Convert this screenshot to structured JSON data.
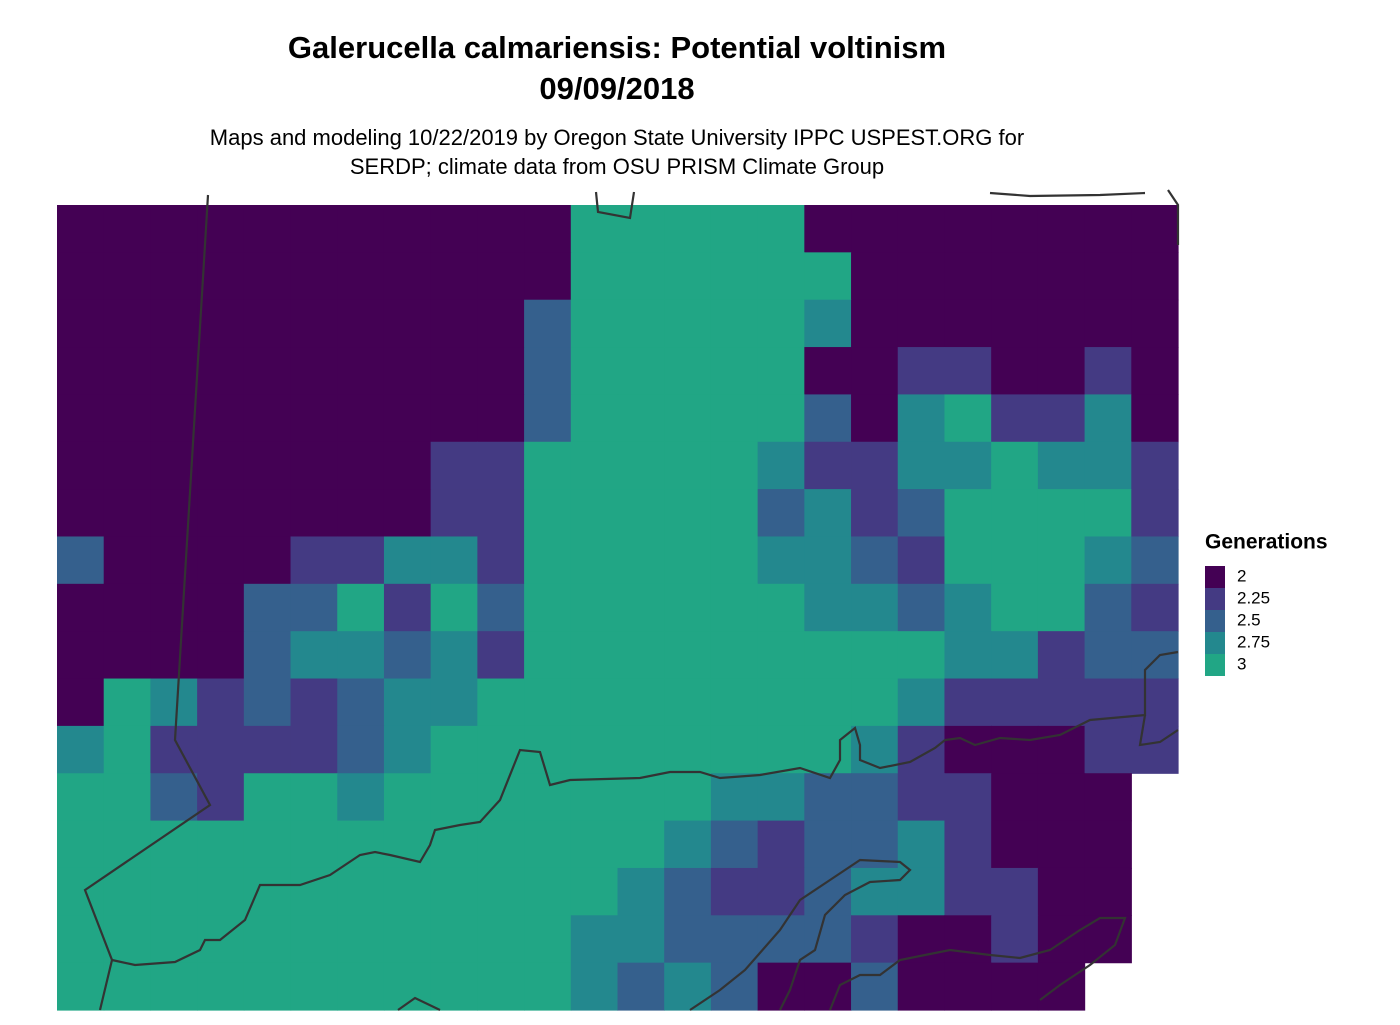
{
  "chart_data": {
    "type": "raster",
    "title": [
      "Galerucella calmariensis: Potential voltinism",
      "09/09/2018"
    ],
    "subtitle": [
      "Maps and modeling 10/22/2019 by Oregon State University IPPC USPEST.ORG for",
      "SERDP; climate data from OSU PRISM Climate Group"
    ],
    "legend": {
      "title": "Generations",
      "entries": [
        {
          "value": 2,
          "color": "#440154"
        },
        {
          "value": 2.25,
          "color": "#443a83"
        },
        {
          "value": 2.5,
          "color": "#35608d"
        },
        {
          "value": 2.75,
          "color": "#23888e"
        },
        {
          "value": 3,
          "color": "#21a685"
        }
      ]
    },
    "values": [
      [
        2,
        2,
        2,
        2,
        2,
        2,
        2,
        2,
        2,
        2,
        2,
        3,
        3,
        3,
        3,
        3,
        2,
        2,
        2,
        2,
        2,
        2,
        2,
        2
      ],
      [
        2,
        2,
        2,
        2,
        2,
        2,
        2,
        2,
        2,
        2,
        2,
        3,
        3,
        3,
        3,
        3,
        3,
        2,
        2,
        2,
        2,
        2,
        2,
        2
      ],
      [
        2,
        2,
        2,
        2,
        2,
        2,
        2,
        2,
        2,
        2,
        2.5,
        3,
        3,
        3,
        3,
        3,
        2.75,
        2,
        2,
        2,
        2,
        2,
        2,
        2
      ],
      [
        2,
        2,
        2,
        2,
        2,
        2,
        2,
        2,
        2,
        2,
        2.5,
        3,
        3,
        3,
        3,
        3,
        2,
        2,
        2.25,
        2.25,
        2,
        2,
        2.25,
        2
      ],
      [
        2,
        2,
        2,
        2,
        2,
        2,
        2,
        2,
        2,
        2,
        2.5,
        3,
        3,
        3,
        3,
        3,
        2.5,
        2,
        2.75,
        3,
        2.25,
        2.25,
        2.75,
        2
      ],
      [
        2,
        2,
        2,
        2,
        2,
        2,
        2,
        2,
        2.25,
        2.25,
        3,
        3,
        3,
        3,
        3,
        2.75,
        2.25,
        2.25,
        2.75,
        2.75,
        3,
        2.75,
        2.75,
        2.25
      ],
      [
        2,
        2,
        2,
        2,
        2,
        2,
        2,
        2,
        2.25,
        2.25,
        3,
        3,
        3,
        3,
        3,
        2.5,
        2.75,
        2.25,
        2.5,
        3,
        3,
        3,
        3,
        2.25
      ],
      [
        2.5,
        2,
        2,
        2,
        2,
        2.25,
        2.25,
        2.75,
        2.75,
        2.25,
        3,
        3,
        3,
        3,
        3,
        2.75,
        2.75,
        2.5,
        2.25,
        3,
        3,
        3,
        2.75,
        2.5
      ],
      [
        2,
        2,
        2,
        2,
        2.5,
        2.5,
        3,
        2.25,
        3,
        2.5,
        3,
        3,
        3,
        3,
        3,
        3,
        2.75,
        2.75,
        2.5,
        2.75,
        3,
        3,
        2.5,
        2.25
      ],
      [
        2,
        2,
        2,
        2,
        2.5,
        2.75,
        2.75,
        2.5,
        2.75,
        2.25,
        3,
        3,
        3,
        3,
        3,
        3,
        3,
        3,
        3,
        2.75,
        2.75,
        2.25,
        2.5,
        2.5
      ],
      [
        2,
        3,
        2.75,
        2.25,
        2.5,
        2.25,
        2.5,
        2.75,
        2.75,
        3,
        3,
        3,
        3,
        3,
        3,
        3,
        3,
        3,
        2.75,
        2.25,
        2.25,
        2.25,
        2.25,
        2.25
      ],
      [
        2.75,
        3,
        2.25,
        2.25,
        2.25,
        2.25,
        2.5,
        2.75,
        3,
        3,
        3,
        3,
        3,
        3,
        3,
        3,
        3,
        2.75,
        2.25,
        2,
        2,
        2,
        2.25,
        2.25
      ],
      [
        3,
        3,
        2.5,
        2.25,
        3,
        3,
        2.75,
        3,
        3,
        3,
        3,
        3,
        3,
        3,
        2.75,
        2.75,
        2.5,
        2.5,
        2.25,
        2.25,
        2,
        2,
        2,
        null
      ],
      [
        3,
        3,
        3,
        3,
        3,
        3,
        3,
        3,
        3,
        3,
        3,
        3,
        3,
        2.75,
        2.5,
        2.25,
        2.5,
        2.5,
        2.75,
        2.25,
        2,
        2,
        2,
        null
      ],
      [
        3,
        3,
        3,
        3,
        3,
        3,
        3,
        3,
        3,
        3,
        3,
        3,
        2.75,
        2.5,
        2.25,
        2.25,
        2.5,
        2.75,
        2.75,
        2.25,
        2.25,
        2,
        2,
        null
      ],
      [
        3,
        3,
        3,
        3,
        3,
        3,
        3,
        3,
        3,
        3,
        3,
        2.75,
        2.75,
        2.5,
        2.5,
        2.5,
        2.5,
        2.25,
        2,
        2,
        2.25,
        2,
        2,
        null
      ],
      [
        3,
        3,
        3,
        3,
        3,
        3,
        3,
        3,
        3,
        3,
        3,
        2.75,
        2.5,
        2.75,
        2.5,
        2,
        2,
        2.5,
        2,
        2,
        2,
        2,
        null,
        null
      ]
    ]
  }
}
